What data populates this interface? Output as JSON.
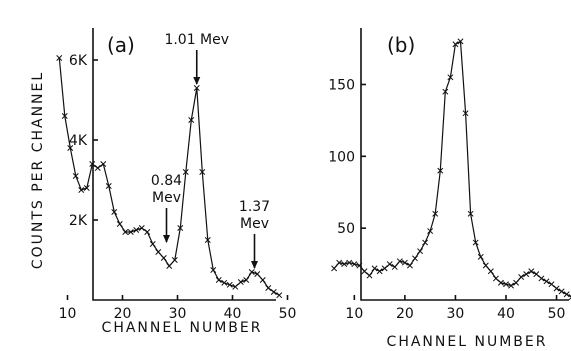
{
  "chart_data": [
    {
      "type": "scatter",
      "panel_label": "(a)",
      "xlabel": "CHANNEL NUMBER",
      "ylabel": "COUNTS PER CHANNEL",
      "xlim": [
        5,
        55
      ],
      "ylim": [
        0,
        7000
      ],
      "x_ticks": [
        10,
        20,
        30,
        40,
        50
      ],
      "y_ticks": [
        {
          "value": 2000,
          "label": "2K"
        },
        {
          "value": 4000,
          "label": "4K"
        },
        {
          "value": 6000,
          "label": "6K"
        }
      ],
      "annotations": [
        {
          "text_lines": [
            "1.01 Mev"
          ],
          "x": 33.5,
          "y": 5300
        },
        {
          "text_lines": [
            "0.84",
            "Mev"
          ],
          "x": 28,
          "y": 1350
        },
        {
          "text_lines": [
            "1.37",
            "Mev"
          ],
          "x": 44,
          "y": 700
        }
      ],
      "series": [
        {
          "points": [
            [
              8.5,
              6050
            ],
            [
              9.5,
              4600
            ],
            [
              10.5,
              3800
            ],
            [
              11.5,
              3100
            ],
            [
              12.5,
              2750
            ],
            [
              13.5,
              2800
            ],
            [
              14.5,
              3400
            ],
            [
              15.5,
              3300
            ],
            [
              16.5,
              3400
            ],
            [
              17.5,
              2850
            ],
            [
              18.5,
              2200
            ],
            [
              19.5,
              1900
            ],
            [
              20.5,
              1700
            ],
            [
              21.5,
              1700
            ],
            [
              22.5,
              1750
            ],
            [
              23.5,
              1800
            ],
            [
              24.5,
              1700
            ],
            [
              25.5,
              1400
            ],
            [
              26.5,
              1200
            ],
            [
              27.5,
              1050
            ],
            [
              28.5,
              850
            ],
            [
              29.5,
              1000
            ],
            [
              30.5,
              1800
            ],
            [
              31.5,
              3200
            ],
            [
              32.5,
              4500
            ],
            [
              33.5,
              5300
            ],
            [
              34.5,
              3200
            ],
            [
              35.5,
              1500
            ],
            [
              36.5,
              750
            ],
            [
              37.5,
              500
            ],
            [
              38.5,
              430
            ],
            [
              39.5,
              380
            ],
            [
              40.5,
              330
            ],
            [
              41.5,
              450
            ],
            [
              42.5,
              500
            ],
            [
              43.5,
              700
            ],
            [
              44.5,
              650
            ],
            [
              45.5,
              500
            ],
            [
              46.5,
              300
            ],
            [
              47.5,
              200
            ],
            [
              48.5,
              120
            ]
          ]
        }
      ]
    },
    {
      "type": "scatter",
      "panel_label": "(b)",
      "xlabel": "CHANNEL NUMBER",
      "ylabel": "",
      "xlim": [
        4,
        58
      ],
      "ylim": [
        0,
        190
      ],
      "x_ticks": [
        10,
        20,
        30,
        40,
        50
      ],
      "y_ticks": [
        {
          "value": 50,
          "label": "50"
        },
        {
          "value": 100,
          "label": "100"
        },
        {
          "value": 150,
          "label": "150"
        }
      ],
      "annotations": [],
      "series": [
        {
          "points": [
            [
              6,
              22
            ],
            [
              7,
              26
            ],
            [
              8,
              25
            ],
            [
              9,
              26
            ],
            [
              10,
              25
            ],
            [
              11,
              24
            ],
            [
              12,
              20
            ],
            [
              13,
              17
            ],
            [
              14,
              22
            ],
            [
              15,
              20
            ],
            [
              16,
              22
            ],
            [
              17,
              25
            ],
            [
              18,
              23
            ],
            [
              19,
              27
            ],
            [
              20,
              26
            ],
            [
              21,
              24
            ],
            [
              22,
              29
            ],
            [
              23,
              34
            ],
            [
              24,
              40
            ],
            [
              25,
              48
            ],
            [
              26,
              60
            ],
            [
              27,
              90
            ],
            [
              28,
              145
            ],
            [
              29,
              155
            ],
            [
              30,
              178
            ],
            [
              31,
              180
            ],
            [
              32,
              130
            ],
            [
              33,
              60
            ],
            [
              34,
              40
            ],
            [
              35,
              30
            ],
            [
              36,
              24
            ],
            [
              37,
              20
            ],
            [
              38,
              15
            ],
            [
              39,
              12
            ],
            [
              40,
              11
            ],
            [
              41,
              10
            ],
            [
              42,
              12
            ],
            [
              43,
              16
            ],
            [
              44,
              18
            ],
            [
              45,
              20
            ],
            [
              46,
              18
            ],
            [
              47,
              15
            ],
            [
              48,
              13
            ],
            [
              49,
              11
            ],
            [
              50,
              8
            ],
            [
              51,
              6
            ],
            [
              52,
              4
            ],
            [
              53,
              2
            ]
          ]
        }
      ]
    }
  ]
}
